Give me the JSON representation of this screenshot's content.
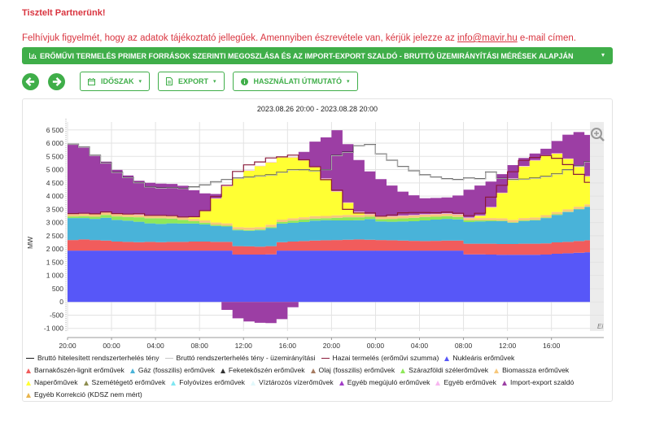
{
  "header": {
    "greeting": "Tisztelt Partnerünk!",
    "notice_before": "Felhívjuk figyelmét, hogy az adatok tájékoztató jellegűek. Amennyiben észrevétele van, kérjük jelezze az ",
    "notice_email": "info@mavir.hu",
    "notice_after": " e-mail címen."
  },
  "section": {
    "title": "ERŐMŰVI TERMELÉS PRIMER FORRÁSOK SZERINTI MEGOSZLÁSA ÉS AZ IMPORT-EXPORT SZALDÓ - BRUTTÓ ÜZEMIRÁNYÍTÁSI MÉRÉSEK ALAPJÁN",
    "accent_color": "#3fae49",
    "caret": "▾"
  },
  "toolbar": {
    "back_icon": "arrow-left-icon",
    "forward_icon": "arrow-right-icon",
    "period_label": "IDŐSZAK",
    "export_label": "EXPORT",
    "guide_label": "HASZNÁLATI ÚTMUTATÓ",
    "caret": "▾"
  },
  "chart_data": {
    "type": "area",
    "stacked": true,
    "title": "2023.08.26 20:00 - 2023.08.28 20:00",
    "ylabel": "MW",
    "xlabel": "",
    "ylim": [
      -1100,
      6800
    ],
    "yticks": [
      -1000,
      -500,
      0,
      500,
      1000,
      1500,
      2000,
      2500,
      3000,
      3500,
      4000,
      4500,
      5000,
      5500,
      6000,
      6500
    ],
    "ytick_labels": [
      "-1 000",
      "-500",
      "0",
      "500",
      "1 000",
      "1 500",
      "2 000",
      "2 500",
      "3 000",
      "3 500",
      "4 000",
      "4 500",
      "5 000",
      "5 500",
      "6 000",
      "6 500"
    ],
    "xticks_hours": [
      0,
      4,
      8,
      12,
      16,
      20,
      24,
      28,
      32,
      36,
      40,
      44
    ],
    "xtick_labels": [
      "20:00",
      "00:00",
      "04:00",
      "08:00",
      "12:00",
      "16:00",
      "20:00",
      "00:00",
      "04:00",
      "08:00",
      "12:00",
      "16:00"
    ],
    "x_hours_span": 47.5,
    "x": [
      0,
      1,
      2,
      3,
      4,
      5,
      6,
      7,
      8,
      9,
      10,
      11,
      12,
      13,
      14,
      15,
      16,
      17,
      18,
      19,
      20,
      21,
      22,
      23,
      24,
      25,
      26,
      27,
      28,
      29,
      30,
      31,
      32,
      33,
      34,
      35,
      36,
      37,
      38,
      39,
      40,
      41,
      42,
      43,
      44,
      45,
      46,
      47
    ],
    "grid": true,
    "zoom_icon": "magnifier-plus-icon",
    "corner_label": "Ei",
    "series": [
      {
        "name": "Nukleáris erőművek",
        "color": "#5757f8",
        "kind": "area",
        "values": [
          1940,
          1940,
          1940,
          1940,
          1940,
          1940,
          1940,
          1940,
          1940,
          1940,
          1940,
          1940,
          1940,
          1940,
          1940,
          1790,
          1790,
          1790,
          1800,
          1940,
          1940,
          1940,
          1940,
          1940,
          1940,
          1940,
          1940,
          1940,
          1940,
          1940,
          1940,
          1940,
          1940,
          1940,
          1940,
          1940,
          1800,
          1800,
          1790,
          1780,
          1780,
          1780,
          1780,
          1790,
          1820,
          1840,
          1860,
          1880
        ]
      },
      {
        "name": "Barnakőszén-lignit erőművek",
        "color": "#f15c5c",
        "kind": "area",
        "values": [
          400,
          420,
          400,
          380,
          340,
          330,
          320,
          330,
          320,
          330,
          330,
          340,
          340,
          330,
          330,
          320,
          310,
          300,
          310,
          320,
          340,
          360,
          380,
          390,
          400,
          410,
          420,
          410,
          400,
          390,
          380,
          370,
          360,
          370,
          380,
          380,
          400,
          400,
          410,
          410,
          410,
          420,
          420,
          420,
          430,
          430,
          440,
          450
        ]
      },
      {
        "name": "Gáz (fosszilis) erőművek",
        "color": "#49b3d9",
        "kind": "area",
        "values": [
          830,
          810,
          800,
          860,
          820,
          800,
          770,
          700,
          690,
          700,
          690,
          680,
          650,
          600,
          580,
          600,
          590,
          620,
          680,
          700,
          710,
          720,
          750,
          760,
          740,
          730,
          730,
          780,
          700,
          700,
          720,
          740,
          780,
          800,
          820,
          800,
          820,
          840,
          850,
          860,
          800,
          860,
          880,
          960,
          1040,
          1130,
          1200,
          1260
        ]
      },
      {
        "name": "Feketekőszén erőművek",
        "color": "#333333",
        "kind": "area",
        "values": [
          0,
          0,
          0,
          0,
          0,
          0,
          0,
          0,
          0,
          0,
          0,
          0,
          0,
          0,
          0,
          0,
          0,
          0,
          0,
          0,
          0,
          0,
          0,
          0,
          0,
          0,
          0,
          0,
          0,
          0,
          0,
          0,
          0,
          0,
          0,
          0,
          0,
          0,
          0,
          0,
          0,
          0,
          0,
          0,
          0,
          0,
          0,
          0
        ]
      },
      {
        "name": "Olaj (fosszilis) erőművek",
        "color": "#a67c62",
        "kind": "area",
        "values": [
          0,
          0,
          0,
          0,
          0,
          0,
          0,
          0,
          0,
          0,
          0,
          0,
          0,
          0,
          0,
          0,
          0,
          0,
          0,
          0,
          0,
          0,
          0,
          0,
          0,
          0,
          0,
          0,
          0,
          0,
          0,
          0,
          0,
          0,
          0,
          0,
          0,
          0,
          0,
          0,
          0,
          0,
          0,
          0,
          0,
          0,
          0,
          0
        ]
      },
      {
        "name": "Szárazföldi szélerőművek",
        "color": "#8ee85a",
        "kind": "area",
        "values": [
          60,
          70,
          80,
          110,
          130,
          140,
          170,
          190,
          210,
          180,
          140,
          90,
          60,
          40,
          30,
          30,
          30,
          30,
          40,
          60,
          80,
          90,
          80,
          70,
          100,
          120,
          110,
          90,
          90,
          110,
          120,
          130,
          130,
          110,
          100,
          90,
          60,
          40,
          30,
          20,
          20,
          20,
          20,
          20,
          20,
          10,
          10,
          10
        ]
      },
      {
        "name": "Biomassza erőművek",
        "color": "#f7c87c",
        "kind": "area",
        "values": [
          90,
          90,
          90,
          90,
          90,
          90,
          90,
          90,
          90,
          90,
          90,
          90,
          90,
          90,
          90,
          90,
          90,
          90,
          90,
          90,
          90,
          90,
          90,
          90,
          90,
          90,
          90,
          90,
          90,
          90,
          90,
          90,
          90,
          90,
          90,
          90,
          90,
          90,
          90,
          90,
          90,
          90,
          90,
          90,
          90,
          90,
          90,
          90
        ]
      },
      {
        "name": "Naperőművek",
        "color": "#ffff33",
        "kind": "area",
        "values": [
          0,
          0,
          0,
          0,
          0,
          0,
          0,
          0,
          0,
          0,
          0,
          60,
          350,
          900,
          1400,
          1850,
          2150,
          2300,
          2350,
          2350,
          2300,
          2150,
          1850,
          1400,
          900,
          450,
          100,
          0,
          0,
          0,
          0,
          0,
          0,
          0,
          0,
          0,
          0,
          80,
          400,
          950,
          1550,
          1950,
          2150,
          2250,
          2200,
          1900,
          1500,
          1050
        ]
      },
      {
        "name": "Szemétégető erőművek",
        "color": "#8d8d4e",
        "kind": "area",
        "values": [
          0,
          0,
          0,
          0,
          0,
          0,
          0,
          0,
          0,
          0,
          0,
          0,
          0,
          0,
          0,
          0,
          0,
          0,
          0,
          0,
          0,
          0,
          0,
          0,
          0,
          0,
          0,
          0,
          0,
          0,
          0,
          0,
          0,
          0,
          0,
          0,
          0,
          0,
          0,
          0,
          0,
          0,
          0,
          0,
          0,
          0,
          0,
          0
        ]
      },
      {
        "name": "Folyóvizes erőművek",
        "color": "#7fe7f2",
        "kind": "area",
        "values": [
          0,
          0,
          0,
          0,
          0,
          0,
          0,
          0,
          0,
          0,
          0,
          0,
          0,
          0,
          0,
          0,
          0,
          0,
          0,
          0,
          0,
          0,
          0,
          0,
          0,
          0,
          0,
          0,
          0,
          0,
          0,
          0,
          0,
          0,
          0,
          0,
          0,
          0,
          0,
          0,
          0,
          0,
          0,
          0,
          0,
          0,
          0,
          0
        ]
      },
      {
        "name": "Víztározós vízerőművek",
        "color": "#e1f8fb",
        "kind": "area",
        "values": [
          0,
          0,
          0,
          0,
          0,
          0,
          0,
          0,
          0,
          0,
          0,
          0,
          0,
          0,
          0,
          0,
          0,
          0,
          0,
          0,
          0,
          0,
          0,
          0,
          0,
          0,
          0,
          0,
          0,
          0,
          0,
          0,
          0,
          0,
          0,
          0,
          0,
          0,
          0,
          0,
          0,
          0,
          0,
          0,
          0,
          0,
          0,
          0
        ]
      },
      {
        "name": "Egyéb megújuló erőművek",
        "color": "#a23dc7",
        "kind": "area",
        "values": [
          0,
          0,
          0,
          0,
          0,
          0,
          0,
          0,
          0,
          0,
          0,
          0,
          0,
          0,
          0,
          0,
          0,
          0,
          0,
          0,
          0,
          0,
          0,
          0,
          0,
          0,
          0,
          0,
          0,
          0,
          0,
          0,
          0,
          0,
          0,
          0,
          0,
          0,
          0,
          0,
          0,
          0,
          0,
          0,
          0,
          0,
          0,
          0
        ]
      },
      {
        "name": "Egyéb erőművek",
        "color": "#f8b6f0",
        "kind": "area",
        "values": [
          20,
          20,
          20,
          20,
          20,
          20,
          20,
          20,
          20,
          20,
          20,
          20,
          20,
          20,
          20,
          20,
          20,
          20,
          20,
          20,
          20,
          20,
          20,
          20,
          20,
          20,
          20,
          20,
          20,
          20,
          20,
          20,
          20,
          20,
          20,
          20,
          20,
          20,
          20,
          20,
          20,
          20,
          20,
          20,
          20,
          20,
          20,
          20
        ]
      },
      {
        "name": "Import-export szaldó",
        "color": "#9c3ea4",
        "kind": "area",
        "values": [
          2620,
          2500,
          2220,
          1900,
          1650,
          1460,
          1270,
          1230,
          1200,
          1200,
          1180,
          1000,
          650,
          160,
          -300,
          -620,
          -740,
          -790,
          -800,
          -650,
          -200,
          300,
          950,
          1550,
          2300,
          2200,
          1950,
          1600,
          1400,
          1150,
          900,
          740,
          600,
          600,
          600,
          700,
          1050,
          1130,
          960,
          700,
          500,
          300,
          250,
          240,
          460,
          900,
          1300,
          1550
        ]
      },
      {
        "name": "Egyéb Korrekció (KDSZ nem mért)",
        "color": "#e8b44c",
        "kind": "area",
        "values": [
          0,
          0,
          0,
          0,
          0,
          0,
          0,
          0,
          0,
          0,
          0,
          0,
          0,
          0,
          0,
          0,
          0,
          0,
          0,
          0,
          0,
          0,
          0,
          0,
          0,
          0,
          0,
          0,
          0,
          0,
          0,
          0,
          0,
          0,
          0,
          0,
          0,
          0,
          0,
          0,
          0,
          0,
          0,
          0,
          0,
          0,
          0,
          0
        ]
      },
      {
        "name": "Bruttó hitelesített rendszerterhelés tény",
        "color": "#1a1a1a",
        "kind": "line",
        "values": [
          5960,
          5850,
          5540,
          5250,
          4900,
          4700,
          4510,
          4350,
          4310,
          4320,
          4290,
          4340,
          4420,
          4540,
          4620,
          4680,
          4720,
          4760,
          4800,
          4900,
          4990,
          5000,
          4950,
          5000,
          5540,
          5660,
          5900,
          5950,
          5590,
          5350,
          5120,
          4950,
          4800,
          4720,
          4660,
          4630,
          4680,
          4650,
          4910,
          4670,
          4620,
          4640,
          4680,
          4740,
          4840,
          5000,
          5150,
          5300
        ]
      },
      {
        "name": "Bruttó rendszerterhelés tény - üzemirányítási",
        "color": "#c8c8c8",
        "kind": "line",
        "values": [
          5950,
          5840,
          5530,
          5240,
          4890,
          4690,
          4500,
          4340,
          4300,
          4310,
          4280,
          4330,
          4410,
          4530,
          4610,
          4670,
          4710,
          4750,
          4790,
          4890,
          4980,
          4990,
          4940,
          4990,
          5530,
          5650,
          5890,
          5940,
          5580,
          5340,
          5110,
          4940,
          4790,
          4710,
          4650,
          4620,
          4670,
          4640,
          4900,
          4660,
          4610,
          4630,
          4670,
          4730,
          4830,
          4990,
          5140,
          5290
        ]
      },
      {
        "name": "Hazai termelés (erőművi szumma)",
        "color": "#8b1a3a",
        "kind": "line",
        "values": [
          3340,
          3350,
          3330,
          3400,
          3340,
          3320,
          3330,
          3270,
          3270,
          3260,
          3210,
          3220,
          3450,
          3980,
          4410,
          4930,
          5180,
          5290,
          5440,
          5480,
          5550,
          5370,
          5110,
          4620,
          4220,
          3500,
          3360,
          3360,
          3240,
          3280,
          3370,
          3380,
          3380,
          3370,
          3390,
          3350,
          3260,
          3350,
          3960,
          4410,
          4920,
          5350,
          5460,
          5530,
          5430,
          5190,
          4820,
          4520
        ]
      }
    ]
  },
  "legend": {
    "rows": [
      [
        "Bruttó hitelesített rendszerterhelés tény",
        "Bruttó rendszerterhelés tény - üzemirányítási",
        "Hazai termelés (erőművi szumma)",
        "Nukleáris erőművek"
      ],
      [
        "Barnakőszén-lignit erőművek",
        "Gáz (fosszilis) erőművek",
        "Feketekőszén erőművek",
        "Olaj (fosszilis) erőművek",
        "Szárazföldi szélerőművek",
        "Biomassza erőművek"
      ],
      [
        "Naperőművek",
        "Szemétégető erőművek",
        "Folyóvizes erőművek",
        "Víztározós vízerőművek",
        "Egyéb megújuló erőművek",
        "Egyéb erőművek",
        "Import-export szaldó"
      ],
      [
        "Egyéb Korrekció (KDSZ nem mért)"
      ]
    ]
  }
}
